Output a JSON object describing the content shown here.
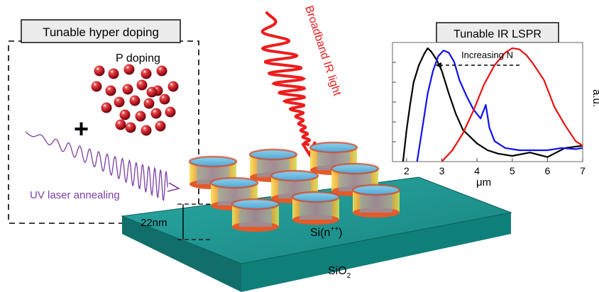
{
  "labels": {
    "hyper_doping_title": "Tunable hyper doping",
    "p_doping": "P doping",
    "plus": "+",
    "uv_laser": "UV laser annealing",
    "broadband": "Broadband IR light",
    "thickness": "22nm",
    "silicon": "Si(n",
    "silicon_sup": "++",
    "silicon_close": ")",
    "substrate": "SiO",
    "substrate_sub": "2"
  },
  "inset": {
    "title": "Tunable IR LSPR",
    "annotation": "Increasing N",
    "xlabel": "μm",
    "ylabel": "a.u."
  },
  "colors": {
    "uv": "#7b3fa6",
    "ir": "#ee1c1c",
    "substrate": "#1e9a96",
    "dopant": "#c8102e"
  },
  "chart_data": {
    "type": "line",
    "title": "Tunable IR LSPR",
    "xlabel": "μm",
    "ylabel": "a.u.",
    "xlim": [
      1.6,
      7
    ],
    "ylim": [
      0,
      1.05
    ],
    "xticks": [
      2,
      3,
      4,
      5,
      6,
      7
    ],
    "annotation": "Increasing N",
    "series": [
      {
        "color": "#000000",
        "x": [
          1.9,
          2.0,
          2.1,
          2.2,
          2.35,
          2.5,
          2.6,
          2.7,
          2.85,
          3.0,
          3.2,
          3.4,
          3.6,
          3.8,
          4.0,
          4.3,
          4.6,
          5.0,
          5.5,
          6.0,
          6.5,
          7.0
        ],
        "y": [
          0.0,
          0.28,
          0.5,
          0.7,
          0.85,
          0.95,
          1.0,
          0.97,
          0.9,
          0.8,
          0.6,
          0.42,
          0.28,
          0.22,
          0.16,
          0.1,
          0.07,
          0.05,
          0.08,
          0.04,
          0.12,
          0.14
        ]
      },
      {
        "color": "#1010ee",
        "x": [
          2.3,
          2.45,
          2.6,
          2.75,
          2.9,
          3.05,
          3.2,
          3.35,
          3.5,
          3.7,
          3.9,
          4.1,
          4.25,
          4.35,
          4.5,
          4.8,
          5.2,
          5.6,
          6.0,
          6.4,
          6.8,
          7.0
        ],
        "y": [
          0.0,
          0.3,
          0.6,
          0.8,
          0.93,
          0.98,
          0.96,
          0.88,
          0.72,
          0.58,
          0.46,
          0.38,
          0.5,
          0.3,
          0.18,
          0.12,
          0.1,
          0.1,
          0.1,
          0.12,
          0.11,
          0.12
        ]
      },
      {
        "color": "#ee1010",
        "x": [
          3.0,
          3.3,
          3.6,
          3.9,
          4.2,
          4.5,
          4.8,
          5.0,
          5.2,
          5.4,
          5.6,
          5.9,
          6.2,
          6.5,
          6.8,
          7.0
        ],
        "y": [
          0.0,
          0.1,
          0.25,
          0.45,
          0.68,
          0.85,
          0.96,
          1.0,
          0.99,
          0.94,
          0.86,
          0.72,
          0.48,
          0.32,
          0.18,
          0.14
        ]
      }
    ]
  }
}
